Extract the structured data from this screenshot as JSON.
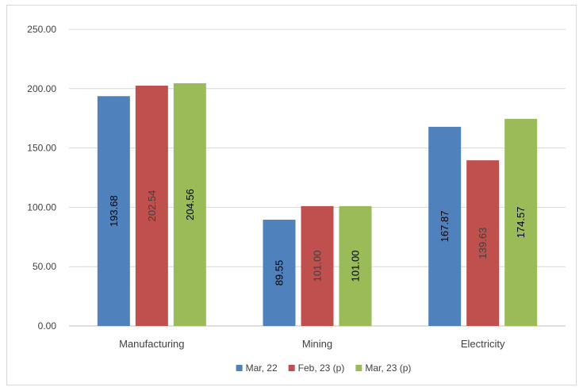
{
  "chart_data": {
    "type": "bar",
    "title": "",
    "xlabel": "",
    "ylabel": "",
    "categories": [
      "Manufacturing",
      "Mining",
      "Electricity"
    ],
    "series": [
      {
        "name": "Mar, 22",
        "color": "#4f81bd",
        "label_color": "#000000",
        "values": [
          193.68,
          89.55,
          167.87
        ]
      },
      {
        "name": "Feb, 23 (p)",
        "color": "#c0504d",
        "label_color": "#404040",
        "values": [
          202.54,
          101.0,
          139.63
        ]
      },
      {
        "name": "Mar, 23 (p)",
        "color": "#9bbb59",
        "label_color": "#000000",
        "values": [
          204.56,
          101.0,
          174.57
        ]
      }
    ],
    "ylim": [
      0,
      250
    ],
    "y_ticks": [
      "0.00",
      "50.00",
      "100.00",
      "150.00",
      "200.00",
      "250.00"
    ],
    "grid": true,
    "legend": "bottom",
    "data_labels": "inside-vertical"
  }
}
